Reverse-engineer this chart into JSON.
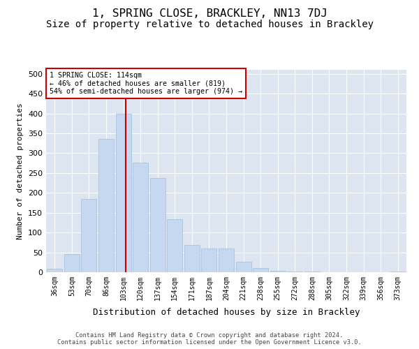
{
  "title": "1, SPRING CLOSE, BRACKLEY, NN13 7DJ",
  "subtitle": "Size of property relative to detached houses in Brackley",
  "xlabel": "Distribution of detached houses by size in Brackley",
  "ylabel": "Number of detached properties",
  "bar_labels": [
    "36sqm",
    "53sqm",
    "70sqm",
    "86sqm",
    "103sqm",
    "120sqm",
    "137sqm",
    "154sqm",
    "171sqm",
    "187sqm",
    "204sqm",
    "221sqm",
    "238sqm",
    "255sqm",
    "272sqm",
    "288sqm",
    "305sqm",
    "322sqm",
    "339sqm",
    "356sqm",
    "373sqm"
  ],
  "bar_values": [
    8,
    46,
    184,
    336,
    400,
    276,
    238,
    133,
    69,
    60,
    60,
    26,
    11,
    4,
    2,
    1,
    0,
    0,
    0,
    0,
    2
  ],
  "bar_color": "#c5d8f0",
  "bar_edge_color": "#a8c4e0",
  "bin_starts": [
    36,
    53,
    70,
    86,
    103,
    120,
    137,
    154,
    171,
    187,
    204,
    221,
    238,
    255,
    272,
    288,
    305,
    322,
    339,
    356,
    373
  ],
  "property_sqm": 114,
  "property_label": "1 SPRING CLOSE: 114sqm",
  "annotation_smaller": "← 46% of detached houses are smaller (819)",
  "annotation_larger": "54% of semi-detached houses are larger (974) →",
  "line_color": "#cc0000",
  "box_edge_color": "#cc0000",
  "ylim": [
    0,
    510
  ],
  "yticks": [
    0,
    50,
    100,
    150,
    200,
    250,
    300,
    350,
    400,
    450,
    500
  ],
  "bg_color": "#dde6f0",
  "title_fontsize": 11.5,
  "subtitle_fontsize": 10,
  "footer_line1": "Contains HM Land Registry data © Crown copyright and database right 2024.",
  "footer_line2": "Contains public sector information licensed under the Open Government Licence v3.0."
}
